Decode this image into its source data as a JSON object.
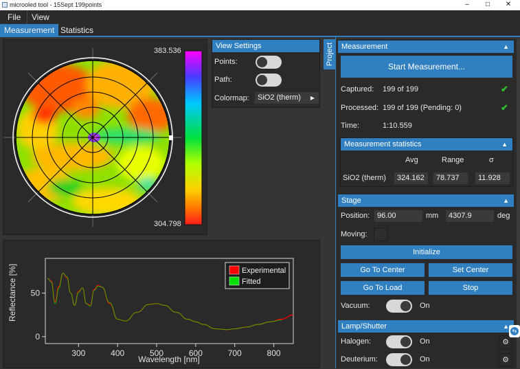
{
  "window": {
    "title": "microoled tool - 15Sept 199points"
  },
  "menu": {
    "file": "File",
    "view": "View"
  },
  "tabs": {
    "measurement": "Measurement",
    "statistics": "Statistics"
  },
  "colors": {
    "accent": "#2f7fc1",
    "ok": "#2ec02e"
  },
  "wafer_map": {
    "scale_max": "383.536",
    "scale_min": "304.798"
  },
  "view_settings": {
    "title": "View Settings",
    "points_label": "Points:",
    "points_on": false,
    "path_label": "Path:",
    "path_on": false,
    "colormap_label": "Colormap:",
    "colormap_value": "SiO2 (therm)"
  },
  "side_tab": "Project",
  "measurement": {
    "title": "Measurement",
    "start_button": "Start Measurement...",
    "captured_label": "Captured:",
    "captured_value": "199 of 199",
    "processed_label": "Processed:",
    "processed_value": "199 of 199 (Pending: 0)",
    "time_label": "Time:",
    "time_value": "1:10.559",
    "stats": {
      "title": "Measurement statistics",
      "col_avg": "Avg",
      "col_range": "Range",
      "col_sigma": "σ",
      "row_label": "SiO2 (therm)",
      "avg": "324.162",
      "range": "78.737",
      "sigma": "11.928"
    }
  },
  "stage": {
    "title": "Stage",
    "position_label": "Position:",
    "position_value": "96.00",
    "position_unit": "mm",
    "angle_value": "4307.9",
    "angle_unit": "deg",
    "moving_label": "Moving:",
    "initialize_button": "Initialize",
    "go_center_button": "Go To Center",
    "set_center_button": "Set Center",
    "go_load_button": "Go To Load",
    "stop_button": "Stop",
    "vacuum_label": "Vacuum:",
    "vacuum_state": "On"
  },
  "lamp": {
    "title": "Lamp/Shutter",
    "halogen_label": "Halogen:",
    "halogen_state": "On",
    "deuterium_label": "Deuterium:",
    "deuterium_state": "On"
  },
  "chart_data": {
    "type": "line",
    "title": "",
    "xlabel": "Wavelength [nm]",
    "ylabel": "Reflectance [%]",
    "xlim": [
      215,
      850
    ],
    "ylim": [
      -8,
      90
    ],
    "xticks": [
      300,
      400,
      500,
      600,
      700,
      800
    ],
    "yticks": [
      0,
      50
    ],
    "legend": {
      "position": "top-right",
      "entries": [
        "Experimental",
        "Fitted"
      ]
    },
    "series": [
      {
        "name": "Experimental",
        "color": "#ff0000",
        "x": [
          220,
          230,
          240,
          250,
          260,
          270,
          280,
          290,
          300,
          310,
          320,
          330,
          340,
          350,
          360,
          380,
          400,
          420,
          450,
          480,
          500,
          520,
          550,
          580,
          600,
          620,
          650,
          680,
          700,
          730,
          760,
          790,
          820,
          850
        ],
        "y": [
          67,
          64,
          40,
          58,
          73,
          68,
          50,
          36,
          52,
          56,
          38,
          36,
          54,
          59,
          57,
          38,
          20,
          18,
          28,
          37,
          38,
          36,
          28,
          20,
          17,
          14,
          9,
          8,
          9,
          11,
          14,
          17,
          20,
          25
        ]
      },
      {
        "name": "Fitted",
        "color": "#00e000",
        "x": [
          220,
          230,
          240,
          250,
          260,
          270,
          280,
          290,
          300,
          310,
          320,
          330,
          340,
          350,
          360,
          380,
          400,
          420,
          450,
          480,
          500,
          520,
          550,
          580,
          600,
          620,
          650,
          680,
          700,
          730,
          760,
          790,
          820
        ],
        "y": [
          67,
          63,
          38,
          56,
          73,
          69,
          50,
          36,
          51,
          56,
          38,
          35,
          53,
          58,
          57,
          39,
          20,
          18,
          28,
          37,
          38,
          36,
          28,
          20,
          17,
          14,
          9,
          8,
          9,
          11,
          14,
          17,
          19
        ]
      }
    ]
  }
}
